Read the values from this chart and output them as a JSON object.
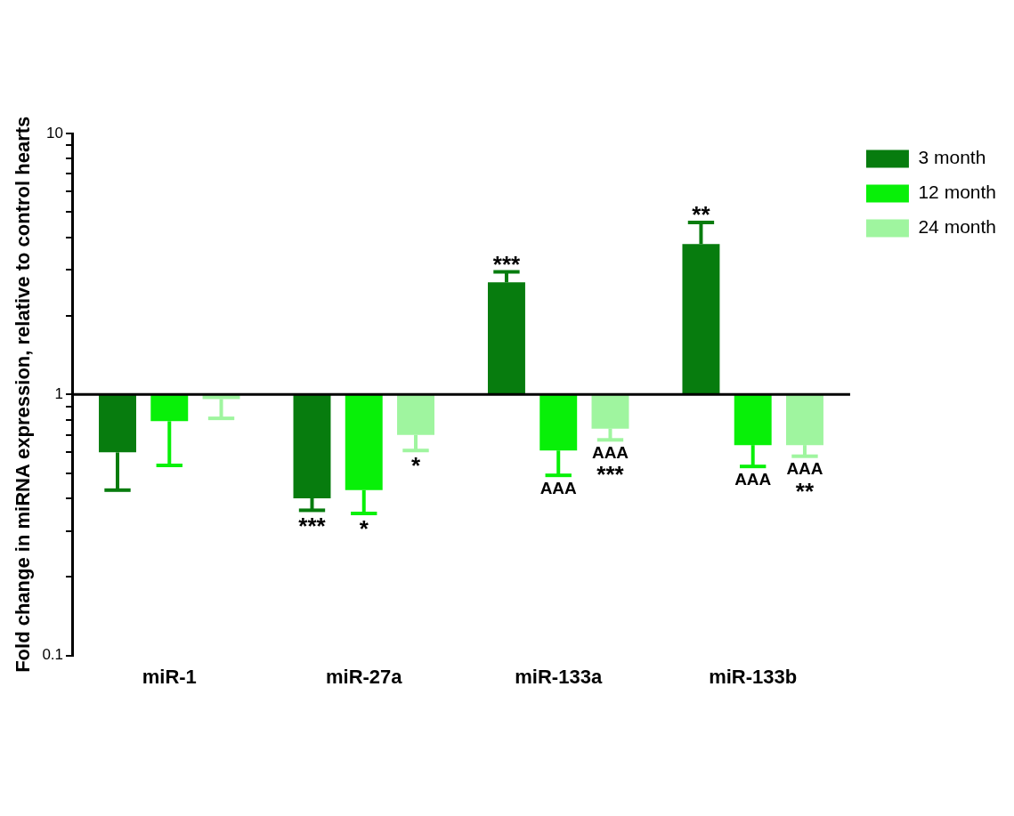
{
  "chart_data": {
    "type": "bar",
    "ylabel": "Fold change in miRNA expression, relative to control hearts",
    "categories": [
      "miR-1",
      "miR-27a",
      "miR-133a",
      "miR-133b"
    ],
    "log": true,
    "ylim": [
      0.1,
      10
    ],
    "yticks": [
      0.1,
      {
        "value": 0.2,
        "label": null
      },
      {
        "value": 0.3,
        "label": null
      },
      {
        "value": 0.4,
        "label": null
      },
      {
        "value": 0.5,
        "label": null
      },
      {
        "value": 0.6,
        "label": null
      },
      {
        "value": 0.7,
        "label": null
      },
      {
        "value": 0.8,
        "label": null
      },
      {
        "value": 0.9,
        "label": null
      },
      1,
      {
        "value": 2,
        "label": null
      },
      {
        "value": 3,
        "label": null
      },
      {
        "value": 4,
        "label": null
      },
      {
        "value": 5,
        "label": null
      },
      {
        "value": 6,
        "label": null
      },
      {
        "value": 7,
        "label": null
      },
      {
        "value": 8,
        "label": null
      },
      {
        "value": 9,
        "label": null
      },
      10
    ],
    "grid": false,
    "legend": "top right",
    "ref_lines": [
      {
        "axis": "y",
        "value": 1,
        "color": "#000000"
      }
    ],
    "series": [
      {
        "name": "3 month",
        "color": "#077c0e",
        "base": [
          1,
          1,
          1,
          1
        ],
        "values": [
          -0.4,
          -0.6,
          1.69,
          2.77
        ],
        "errors": [
          [
            0.43,
            0.6
          ],
          [
            0.36,
            0.4
          ],
          [
            2.69,
            2.95
          ],
          [
            3.77,
            4.56
          ]
        ],
        "value_labels": [
          null,
          "***",
          "***",
          "**"
        ]
      },
      {
        "name": "12 month",
        "color": "#08f008",
        "base": [
          1,
          1,
          1,
          1
        ],
        "values": [
          -0.21,
          -0.57,
          -0.39,
          -0.36
        ],
        "errors": [
          [
            0.535,
            0.79
          ],
          [
            0.35,
            0.43
          ],
          [
            0.49,
            0.61
          ],
          [
            0.53,
            0.64
          ]
        ],
        "value_labels": [
          null,
          "*",
          "AAA",
          "AAA"
        ]
      },
      {
        "name": "24 month",
        "color": "#9ff59f",
        "base": [
          1,
          1,
          1,
          1
        ],
        "values": [
          -0.04,
          -0.3,
          -0.26,
          -0.36
        ],
        "errors": [
          [
            0.81,
            0.96
          ],
          [
            0.61,
            0.7
          ],
          [
            0.67,
            0.74
          ],
          [
            0.58,
            0.64
          ]
        ],
        "value_labels": [
          null,
          "*",
          "AAA\n***",
          "AAA\n**"
        ]
      }
    ]
  }
}
